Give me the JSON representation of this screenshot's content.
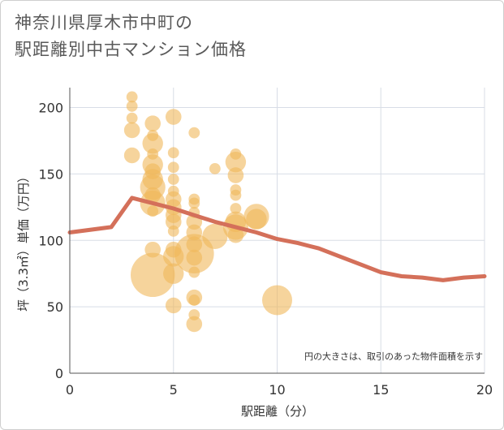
{
  "chart_data": {
    "type": "scatter",
    "title": [
      "神奈川県厚木市中町の",
      "駅距離別中古マンション価格"
    ],
    "xlabel": "駅距離（分）",
    "ylabel": "坪（3.3㎡）単価（万円）",
    "note": "円の大きさは、取引のあった物件面積を示す",
    "xlim": [
      0,
      20
    ],
    "ylim": [
      0,
      215
    ],
    "xticks": [
      0,
      5,
      10,
      15,
      20
    ],
    "yticks": [
      0,
      50,
      100,
      150,
      200
    ],
    "grid": true,
    "colors": {
      "bubble": "#f0b85a",
      "line": "#d4705a",
      "grid": "#d8dde6",
      "axis": "#555555"
    },
    "bubbles": [
      {
        "x": 3,
        "y": 208,
        "s": 1
      },
      {
        "x": 3,
        "y": 201,
        "s": 1
      },
      {
        "x": 3,
        "y": 192,
        "s": 1
      },
      {
        "x": 3,
        "y": 183,
        "s": 2
      },
      {
        "x": 3,
        "y": 164,
        "s": 2
      },
      {
        "x": 4,
        "y": 188,
        "s": 2
      },
      {
        "x": 4,
        "y": 179,
        "s": 1
      },
      {
        "x": 4,
        "y": 173,
        "s": 3
      },
      {
        "x": 4,
        "y": 165,
        "s": 1
      },
      {
        "x": 4,
        "y": 157,
        "s": 3
      },
      {
        "x": 4,
        "y": 152,
        "s": 2
      },
      {
        "x": 4,
        "y": 146,
        "s": 3
      },
      {
        "x": 4,
        "y": 140,
        "s": 4
      },
      {
        "x": 4,
        "y": 134,
        "s": 2
      },
      {
        "x": 4,
        "y": 128,
        "s": 4
      },
      {
        "x": 4,
        "y": 122,
        "s": 1
      },
      {
        "x": 4,
        "y": 93,
        "s": 2
      },
      {
        "x": 4,
        "y": 74,
        "s": 8
      },
      {
        "x": 5,
        "y": 193,
        "s": 2
      },
      {
        "x": 5,
        "y": 166,
        "s": 1
      },
      {
        "x": 5,
        "y": 155,
        "s": 1
      },
      {
        "x": 5,
        "y": 146,
        "s": 1
      },
      {
        "x": 5,
        "y": 137,
        "s": 1
      },
      {
        "x": 5,
        "y": 131,
        "s": 2
      },
      {
        "x": 5,
        "y": 125,
        "s": 2
      },
      {
        "x": 5,
        "y": 119,
        "s": 2
      },
      {
        "x": 5,
        "y": 114,
        "s": 2
      },
      {
        "x": 5,
        "y": 107,
        "s": 1
      },
      {
        "x": 5,
        "y": 93,
        "s": 2
      },
      {
        "x": 5,
        "y": 88,
        "s": 3
      },
      {
        "x": 5,
        "y": 75,
        "s": 3
      },
      {
        "x": 5,
        "y": 51,
        "s": 2
      },
      {
        "x": 6,
        "y": 181,
        "s": 1
      },
      {
        "x": 6,
        "y": 131,
        "s": 1
      },
      {
        "x": 6,
        "y": 128,
        "s": 1
      },
      {
        "x": 6,
        "y": 121,
        "s": 1
      },
      {
        "x": 6,
        "y": 114,
        "s": 2
      },
      {
        "x": 6,
        "y": 106,
        "s": 2
      },
      {
        "x": 6,
        "y": 97,
        "s": 2
      },
      {
        "x": 6,
        "y": 90,
        "s": 7
      },
      {
        "x": 6,
        "y": 87,
        "s": 2
      },
      {
        "x": 6,
        "y": 76,
        "s": 1
      },
      {
        "x": 6,
        "y": 57,
        "s": 2
      },
      {
        "x": 6,
        "y": 55,
        "s": 1
      },
      {
        "x": 6,
        "y": 44,
        "s": 1
      },
      {
        "x": 6,
        "y": 37,
        "s": 2
      },
      {
        "x": 7,
        "y": 154,
        "s": 1
      },
      {
        "x": 7,
        "y": 103,
        "s": 4
      },
      {
        "x": 8,
        "y": 165,
        "s": 1
      },
      {
        "x": 8,
        "y": 159,
        "s": 3
      },
      {
        "x": 8,
        "y": 149,
        "s": 2
      },
      {
        "x": 8,
        "y": 138,
        "s": 1
      },
      {
        "x": 8,
        "y": 134,
        "s": 1
      },
      {
        "x": 8,
        "y": 124,
        "s": 1
      },
      {
        "x": 8,
        "y": 114,
        "s": 3
      },
      {
        "x": 8,
        "y": 110,
        "s": 4
      },
      {
        "x": 8,
        "y": 104,
        "s": 2
      },
      {
        "x": 9,
        "y": 118,
        "s": 4
      },
      {
        "x": 9,
        "y": 116,
        "s": 3
      },
      {
        "x": 10,
        "y": 55,
        "s": 5
      }
    ],
    "series": [
      {
        "type": "line",
        "x": [
          0,
          2,
          3,
          4,
          5,
          6,
          7,
          8,
          9,
          10,
          11,
          12,
          13,
          14,
          15,
          16,
          17,
          18,
          19,
          20
        ],
        "y": [
          106,
          110,
          132,
          128,
          124,
          119,
          114,
          110,
          106,
          101,
          98,
          94,
          88,
          82,
          76,
          73,
          72,
          70,
          72,
          73
        ]
      }
    ]
  }
}
